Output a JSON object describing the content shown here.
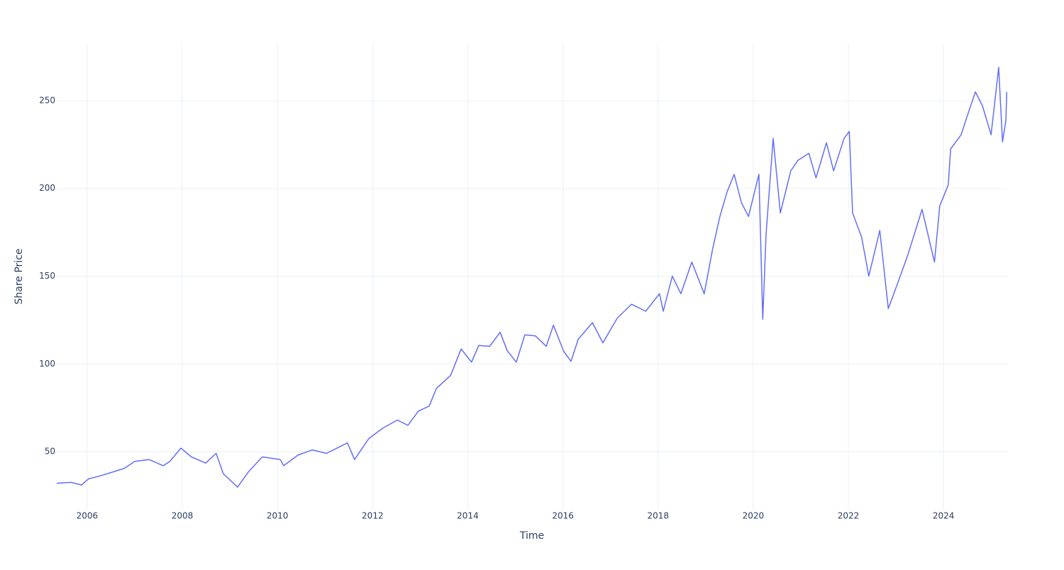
{
  "chart_data": {
    "type": "line",
    "x_label": "Time",
    "y_label": "Share Price",
    "x": [
      2005.36,
      2005.66,
      2005.88,
      2006.03,
      2006.25,
      2006.55,
      2006.78,
      2007.0,
      2007.3,
      2007.6,
      2007.74,
      2007.97,
      2008.19,
      2008.49,
      2008.71,
      2008.86,
      2009.16,
      2009.39,
      2009.68,
      2010.06,
      2010.13,
      2010.43,
      2010.73,
      2011.03,
      2011.47,
      2011.62,
      2011.92,
      2012.22,
      2012.52,
      2012.74,
      2012.96,
      2013.19,
      2013.34,
      2013.64,
      2013.86,
      2014.08,
      2014.23,
      2014.46,
      2014.68,
      2014.83,
      2015.02,
      2015.2,
      2015.42,
      2015.65,
      2015.8,
      2016.02,
      2016.17,
      2016.32,
      2016.62,
      2016.84,
      2017.14,
      2017.44,
      2017.74,
      2018.03,
      2018.11,
      2018.3,
      2018.48,
      2018.71,
      2018.97,
      2019.15,
      2019.3,
      2019.45,
      2019.6,
      2019.75,
      2019.9,
      2020.12,
      2020.2,
      2020.27,
      2020.42,
      2020.57,
      2020.79,
      2020.94,
      2021.17,
      2021.32,
      2021.54,
      2021.69,
      2021.91,
      2022.02,
      2022.09,
      2022.28,
      2022.43,
      2022.66,
      2022.84,
      2023.03,
      2023.25,
      2023.55,
      2023.81,
      2023.92,
      2024.1,
      2024.15,
      2024.37,
      2024.52,
      2024.67,
      2024.82,
      2025.0,
      2025.16,
      2025.24,
      2025.31,
      2025.33
    ],
    "series": [
      {
        "name": "Share Price",
        "color": "#636efa",
        "values": [
          32,
          32.5,
          31,
          34.5,
          36,
          38.5,
          40.5,
          44.5,
          45.5,
          42,
          44.5,
          52,
          47,
          43.5,
          49,
          37.5,
          29.8,
          38.5,
          47,
          45.5,
          42,
          48,
          51,
          49,
          55,
          45.5,
          57.5,
          63.5,
          68,
          65,
          73,
          76,
          86,
          93.5,
          108.5,
          101,
          110.5,
          110,
          118,
          107.5,
          101,
          116.5,
          116,
          110,
          122,
          107,
          101.5,
          114,
          123.5,
          112,
          126,
          134,
          130,
          140,
          130,
          150,
          140,
          158,
          140,
          166,
          184,
          198,
          208,
          192,
          184,
          208,
          125.5,
          174,
          228.5,
          186,
          210,
          216,
          220,
          206,
          226,
          210,
          228.5,
          232.5,
          186,
          172,
          150,
          176,
          131.5,
          145.5,
          162,
          188,
          158,
          190,
          202,
          222.5,
          230.5,
          243,
          255,
          247,
          230.5,
          269,
          226.5,
          238.5,
          255
        ]
      }
    ],
    "xlim": [
      2005.36,
      2025.34
    ],
    "xticks": [
      2006,
      2008,
      2010,
      2012,
      2014,
      2016,
      2018,
      2020,
      2022,
      2024
    ],
    "ylim": [
      16.5,
      283.1
    ],
    "yticks": [
      50,
      100,
      150,
      200,
      250
    ],
    "grid": true
  }
}
